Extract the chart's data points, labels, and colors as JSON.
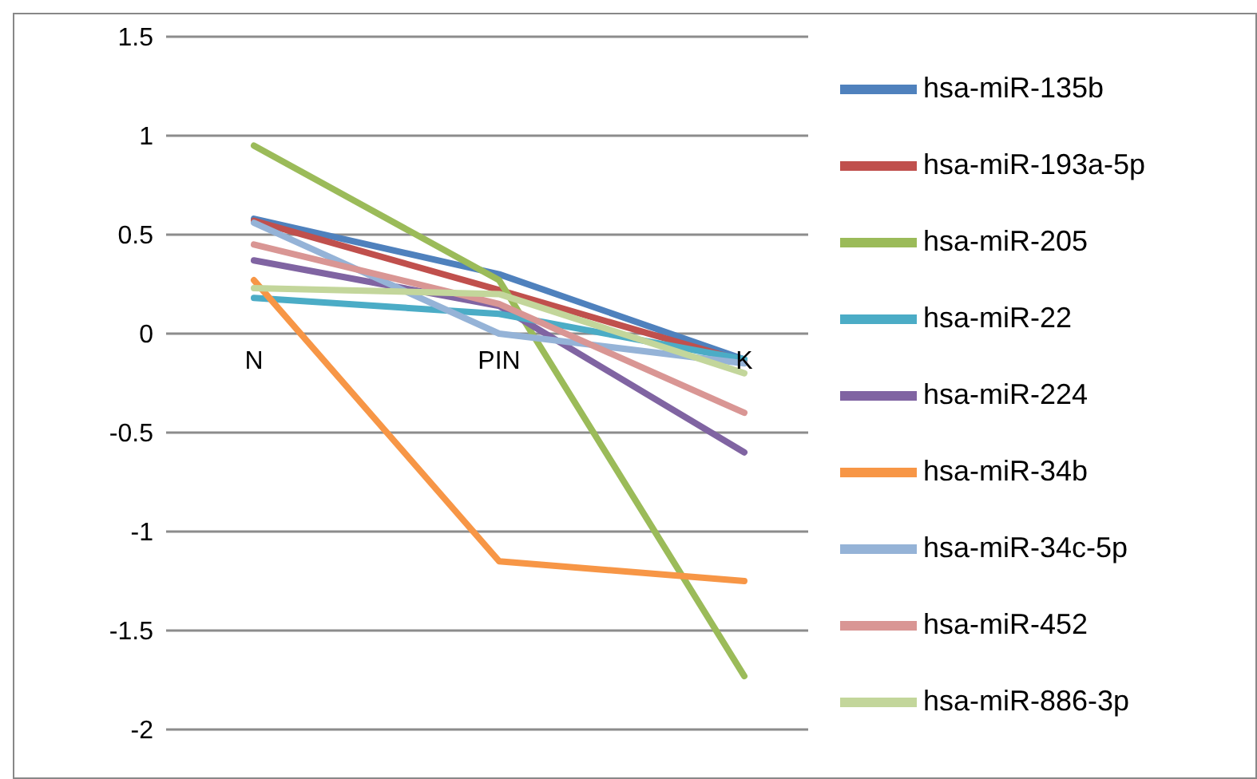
{
  "chart_data": {
    "type": "line",
    "categories": [
      "N",
      "PIN",
      "K"
    ],
    "series": [
      {
        "name": "hsa-miR-135b",
        "color": "#4f81bd",
        "values": [
          0.58,
          0.3,
          -0.13
        ]
      },
      {
        "name": "hsa-miR-193a-5p",
        "color": "#c0504d",
        "values": [
          0.57,
          0.22,
          -0.14
        ]
      },
      {
        "name": "hsa-miR-205",
        "color": "#9bbb59",
        "values": [
          0.95,
          0.27,
          -1.73
        ]
      },
      {
        "name": "hsa-miR-224",
        "color": "#8064a2",
        "values": [
          0.37,
          0.14,
          -0.6
        ]
      },
      {
        "name": "hsa-miR-22",
        "color": "#4bacc6",
        "values": [
          0.18,
          0.1,
          -0.13
        ]
      },
      {
        "name": "hsa-miR-34b",
        "color": "#f79646",
        "values": [
          0.27,
          -1.15,
          -1.25
        ]
      },
      {
        "name": "hsa-miR-34c-5p",
        "color": "#95b3d7",
        "values": [
          0.56,
          0.0,
          -0.15
        ]
      },
      {
        "name": "hsa-miR-452",
        "color": "#d99694",
        "values": [
          0.45,
          0.15,
          -0.4
        ]
      },
      {
        "name": "hsa-miR-886-3p",
        "color": "#c3d69b",
        "values": [
          0.23,
          0.2,
          -0.2
        ]
      }
    ],
    "ylim": [
      -2,
      1.5
    ],
    "yticks": [
      -2,
      -1.5,
      -1,
      -0.5,
      0,
      0.5,
      1,
      1.5
    ],
    "grid": "y",
    "legend": "right",
    "marker": "none",
    "line_style": "solid"
  }
}
